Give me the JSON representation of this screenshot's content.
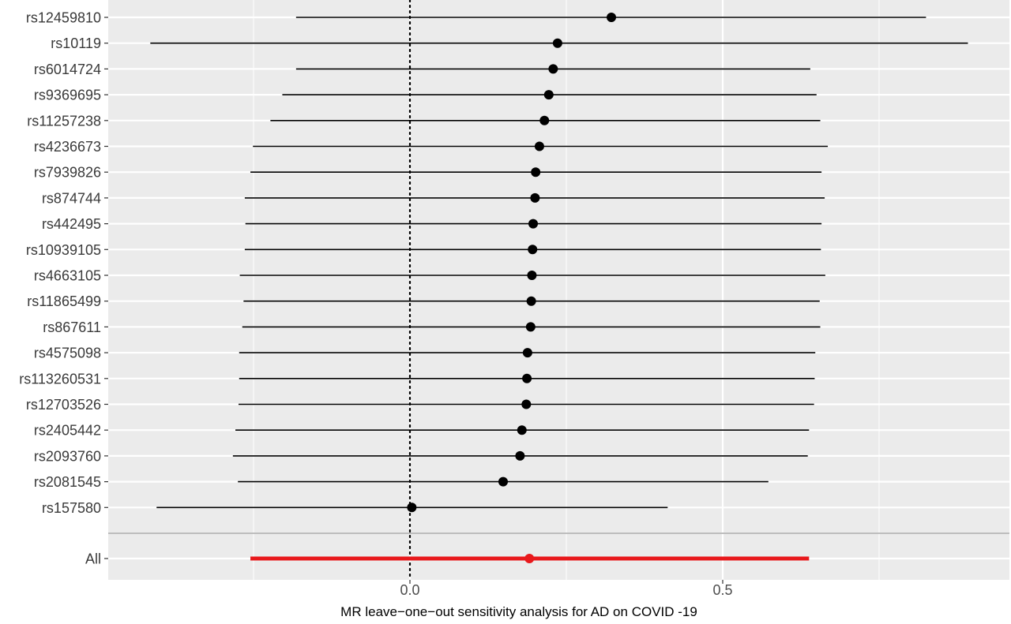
{
  "chart_data": {
    "type": "forest",
    "xlabel": "MR leave−one−out sensitivity analysis for AD on COVID -19",
    "xticks": [
      0.0,
      0.5
    ],
    "xtick_labels": [
      "0.0",
      "0.5"
    ],
    "xlim": [
      -0.48,
      0.95
    ],
    "reference_line": 0,
    "colors": {
      "snp": "#000000",
      "all": "#e8191c",
      "panel": "#ebebeb",
      "grid": "#ffffff"
    },
    "rows": [
      {
        "label": "rs12459810",
        "estimate": 0.322,
        "lower": -0.182,
        "upper": 0.825
      },
      {
        "label": "rs10119",
        "estimate": 0.236,
        "lower": -0.415,
        "upper": 0.892
      },
      {
        "label": "rs6014724",
        "estimate": 0.229,
        "lower": -0.182,
        "upper": 0.64
      },
      {
        "label": "rs9369695",
        "estimate": 0.222,
        "lower": -0.204,
        "upper": 0.65
      },
      {
        "label": "rs11257238",
        "estimate": 0.215,
        "lower": -0.223,
        "upper": 0.656
      },
      {
        "label": "rs4236673",
        "estimate": 0.207,
        "lower": -0.251,
        "upper": 0.668
      },
      {
        "label": "rs7939826",
        "estimate": 0.201,
        "lower": -0.255,
        "upper": 0.658
      },
      {
        "label": "rs874744",
        "estimate": 0.2,
        "lower": -0.264,
        "upper": 0.663
      },
      {
        "label": "rs442495",
        "estimate": 0.197,
        "lower": -0.263,
        "upper": 0.658
      },
      {
        "label": "rs10939105",
        "estimate": 0.196,
        "lower": -0.264,
        "upper": 0.657
      },
      {
        "label": "rs4663105",
        "estimate": 0.195,
        "lower": -0.272,
        "upper": 0.664
      },
      {
        "label": "rs11865499",
        "estimate": 0.194,
        "lower": -0.266,
        "upper": 0.655
      },
      {
        "label": "rs867611",
        "estimate": 0.193,
        "lower": -0.268,
        "upper": 0.656
      },
      {
        "label": "rs4575098",
        "estimate": 0.188,
        "lower": -0.273,
        "upper": 0.648
      },
      {
        "label": "rs113260531",
        "estimate": 0.187,
        "lower": -0.273,
        "upper": 0.647
      },
      {
        "label": "rs12703526",
        "estimate": 0.186,
        "lower": -0.274,
        "upper": 0.646
      },
      {
        "label": "rs2405442",
        "estimate": 0.179,
        "lower": -0.279,
        "upper": 0.638
      },
      {
        "label": "rs2093760",
        "estimate": 0.176,
        "lower": -0.283,
        "upper": 0.636
      },
      {
        "label": "rs2081545",
        "estimate": 0.149,
        "lower": -0.275,
        "upper": 0.573
      },
      {
        "label": "rs157580",
        "estimate": 0.003,
        "lower": -0.405,
        "upper": 0.412
      }
    ],
    "overall": {
      "label": "All",
      "estimate": 0.191,
      "lower": -0.255,
      "upper": 0.638
    }
  }
}
